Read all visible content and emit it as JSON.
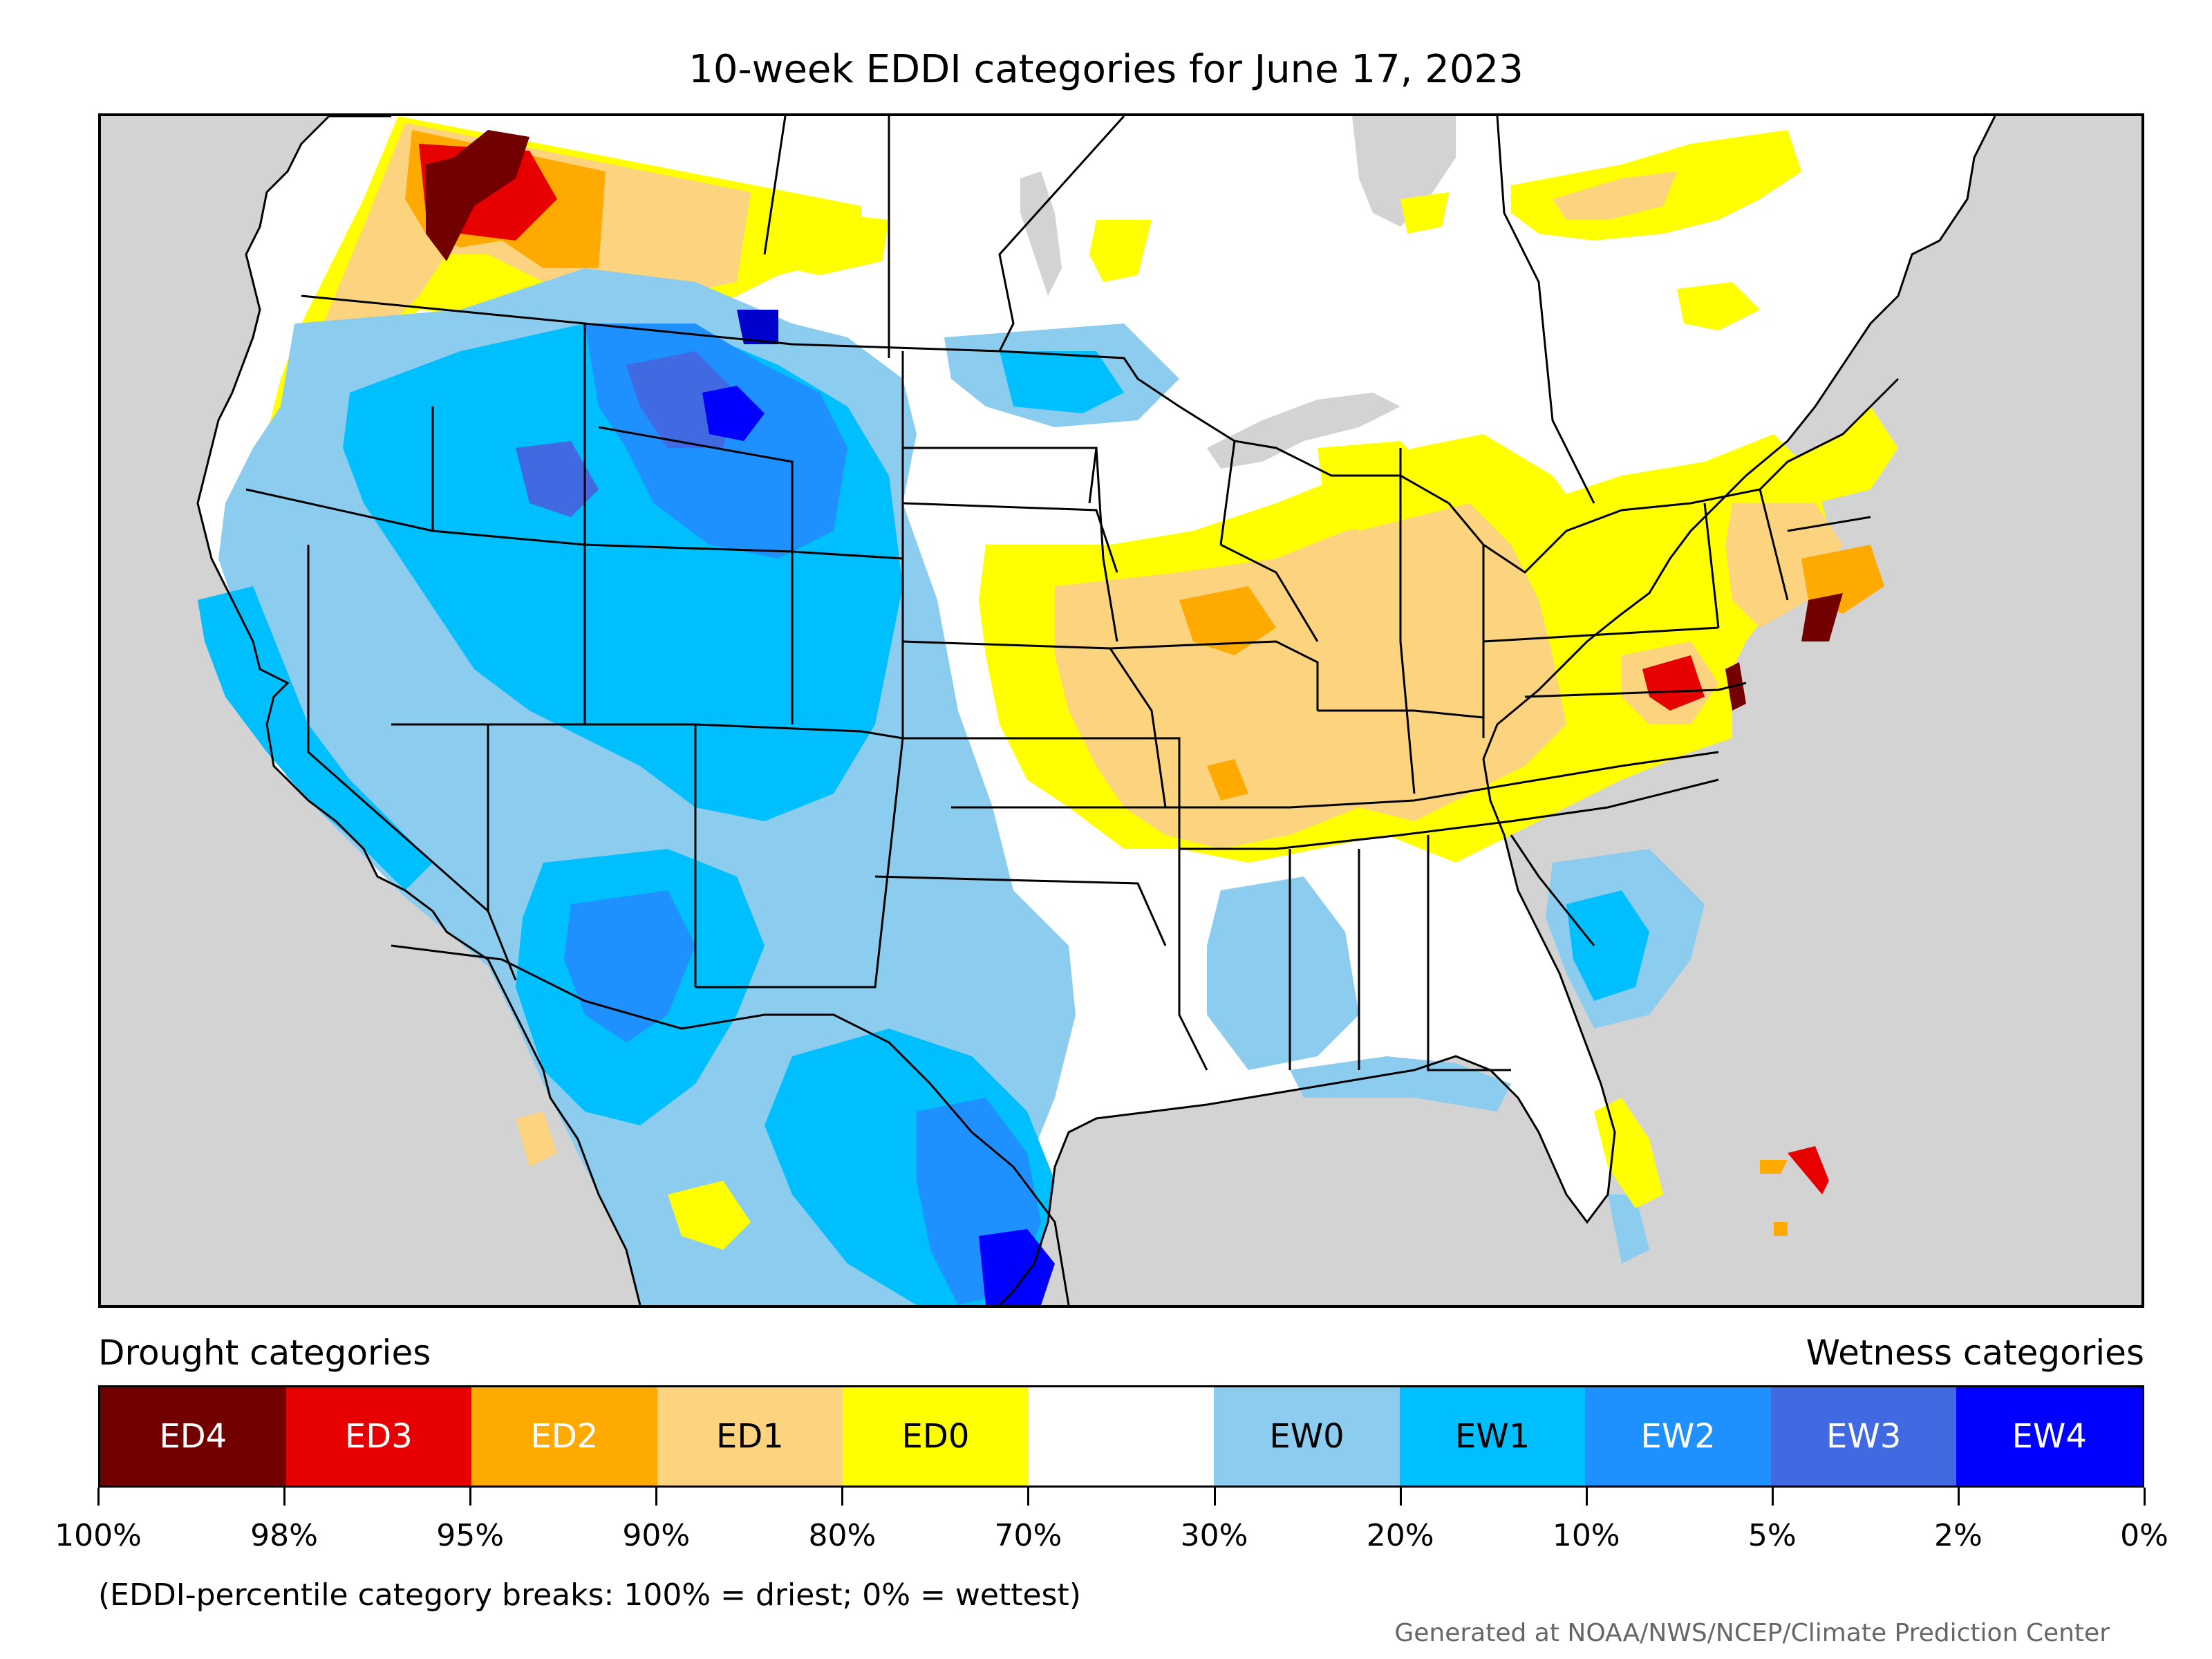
{
  "title": "10-week EDDI categories for June 17, 2023",
  "legend": {
    "drought_heading": "Drought categories",
    "wetness_heading": "Wetness categories",
    "categories": [
      {
        "label": "ED4",
        "color": "#730000",
        "text_color": "#ffffff"
      },
      {
        "label": "ED3",
        "color": "#e60000",
        "text_color": "#ffffff"
      },
      {
        "label": "ED2",
        "color": "#ffaa00",
        "text_color": "#ffffff"
      },
      {
        "label": "ED1",
        "color": "#fcd37f",
        "text_color": "#000000"
      },
      {
        "label": "ED0",
        "color": "#ffff00",
        "text_color": "#000000"
      },
      {
        "label": "",
        "color": "#ffffff",
        "text_color": "#000000"
      },
      {
        "label": "EW0",
        "color": "#8ccdef",
        "text_color": "#000000"
      },
      {
        "label": "EW1",
        "color": "#00bfff",
        "text_color": "#000000"
      },
      {
        "label": "EW2",
        "color": "#1e90ff",
        "text_color": "#ffffff"
      },
      {
        "label": "EW3",
        "color": "#4169e1",
        "text_color": "#ffffff"
      },
      {
        "label": "EW4",
        "color": "#0000ff",
        "text_color": "#ffffff"
      }
    ],
    "tick_labels": [
      "100%",
      "98%",
      "95%",
      "90%",
      "80%",
      "70%",
      "30%",
      "20%",
      "10%",
      "5%",
      "2%",
      "0%"
    ],
    "note": "(EDDI-percentile category breaks: 100% = driest; 0% = wettest)"
  },
  "credit": "Generated at NOAA/NWS/NCEP/Climate Prediction Center",
  "map": {
    "ocean_color": "#d3d3d3",
    "land_color": "#ffffff",
    "boundary_color": "#000000"
  }
}
